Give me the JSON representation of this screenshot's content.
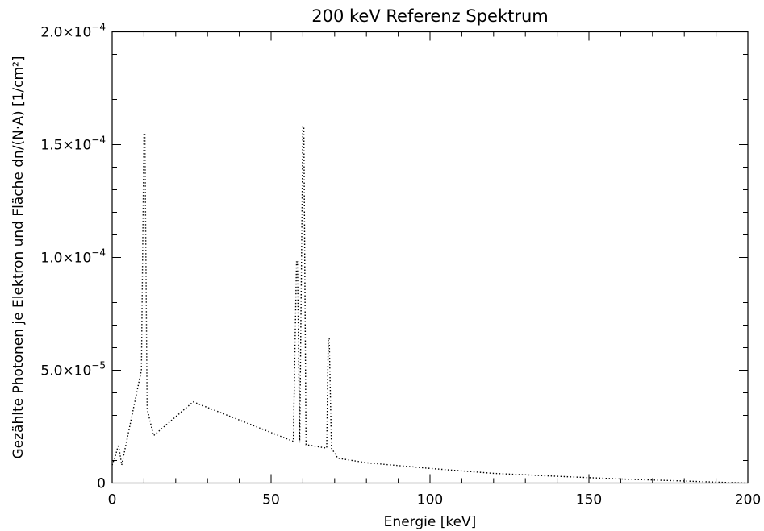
{
  "chart_data": {
    "type": "line",
    "title": "200 keV Referenz Spektrum",
    "xlabel": "Energie [keV]",
    "ylabel": "Gezählte Photonen je Elektron und Fläche dn/(N·A) [1/cm²]",
    "xlim": [
      0,
      200
    ],
    "ylim": [
      0,
      0.0002
    ],
    "x_ticks": [
      0,
      50,
      100,
      150,
      200
    ],
    "x_tick_labels": [
      "0",
      "50",
      "100",
      "150",
      "200"
    ],
    "y_ticks": [
      0,
      5e-05,
      0.0001,
      0.00015,
      0.0002
    ],
    "y_tick_labels": [
      {
        "mantissa": "0",
        "exp": ""
      },
      {
        "mantissa": "5.0×10",
        "exp": "−5"
      },
      {
        "mantissa": "1.0×10",
        "exp": "−4"
      },
      {
        "mantissa": "1.5×10",
        "exp": "−4"
      },
      {
        "mantissa": "2.0×10",
        "exp": "−4"
      }
    ],
    "line_style": "dotted",
    "line_color": "#000000",
    "grid": false,
    "series": [
      {
        "x": [
          0,
          1,
          2,
          3,
          9.2,
          10,
          10.3,
          11,
          13,
          25.5,
          57,
          58,
          58.3,
          59,
          60,
          60.3,
          61,
          67.5,
          68,
          68.3,
          69,
          71,
          80,
          100,
          120,
          140,
          160,
          180,
          190,
          200
        ],
        "y": [
          8e-06,
          1.2e-05,
          1.7e-05,
          8e-06,
          5e-05,
          0.000155,
          0.000155,
          3.3e-05,
          2.1e-05,
          3.6e-05,
          1.85e-05,
          9.8e-05,
          9.8e-05,
          1.8e-05,
          0.000158,
          0.000158,
          1.7e-05,
          1.55e-05,
          6.4e-05,
          6.4e-05,
          1.55e-05,
          1.1e-05,
          9e-06,
          6.5e-06,
          4.3e-06,
          3e-06,
          1.8e-06,
          9e-07,
          4e-07,
          0
        ]
      }
    ]
  }
}
